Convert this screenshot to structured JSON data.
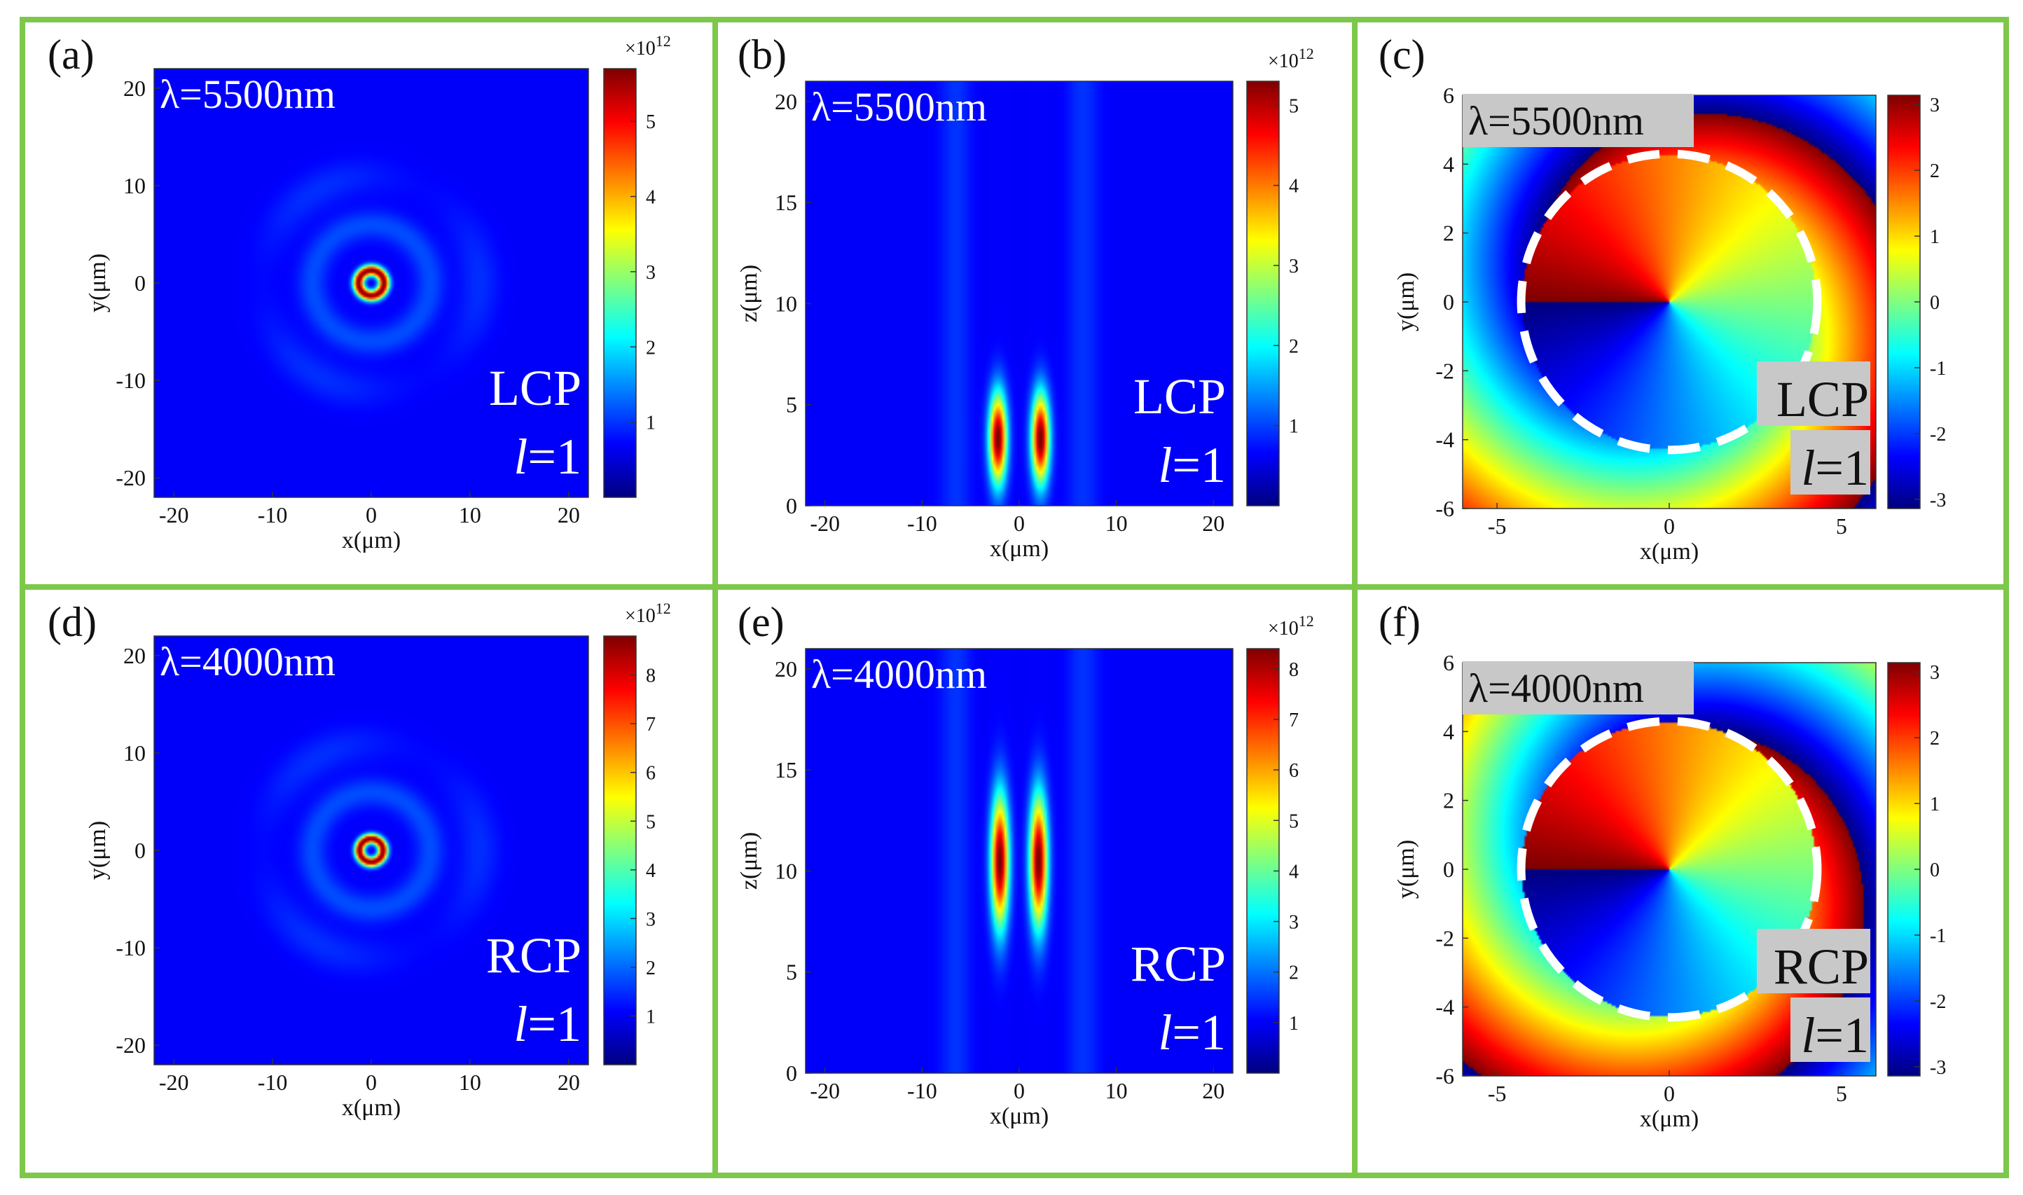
{
  "figure": {
    "frame_color": "#7dc84a",
    "colormap": [
      "#00007f",
      "#0000ff",
      "#007fff",
      "#00ffff",
      "#7fff7f",
      "#ffff00",
      "#ff7f00",
      "#ff0000",
      "#7f0000"
    ],
    "background_field_color": "#0a2fb8"
  },
  "chart_data": [
    {
      "id": "a",
      "type": "heatmap",
      "label": "(a)",
      "annotation": "λ=5500nm",
      "polarization": "LCP",
      "charge_text": "l",
      "charge_value": "=1",
      "xlabel": "x(μm)",
      "ylabel": "y(μm)",
      "xlim": [
        -22,
        22
      ],
      "ylim": [
        -22,
        22
      ],
      "xticks": [
        -20,
        -10,
        0,
        10,
        20
      ],
      "yticks": [
        -20,
        -10,
        0,
        10,
        20
      ],
      "xtick_labels": [
        "-20",
        "-10",
        "0",
        "10",
        "20"
      ],
      "ytick_labels": [
        "-20",
        "-10",
        "0",
        "10",
        "20"
      ],
      "colorbar": {
        "range": [
          0,
          5.7
        ],
        "ticks": [
          1,
          2,
          3,
          4,
          5
        ],
        "tick_labels": [
          "1",
          "2",
          "3",
          "4",
          "5"
        ],
        "multiplier": "×10",
        "exponent": "12"
      },
      "field": "donut_xy",
      "peak_radius": 1.3,
      "peak_width": 0.55,
      "dashed_circle": false
    },
    {
      "id": "b",
      "type": "heatmap",
      "label": "(b)",
      "annotation": "λ=5500nm",
      "polarization": "LCP",
      "charge_text": "l",
      "charge_value": "=1",
      "xlabel": "x(μm)",
      "ylabel": "z(μm)",
      "xlim": [
        -22,
        22
      ],
      "ylim": [
        0,
        21
      ],
      "xticks": [
        -20,
        -10,
        0,
        10,
        20
      ],
      "yticks": [
        0,
        5,
        10,
        15,
        20
      ],
      "xtick_labels": [
        "-20",
        "-10",
        "0",
        "10",
        "20"
      ],
      "ytick_labels": [
        "0",
        "5",
        "10",
        "15",
        "20"
      ],
      "colorbar": {
        "range": [
          0,
          5.3
        ],
        "ticks": [
          1,
          2,
          3,
          4,
          5
        ],
        "tick_labels": [
          "1",
          "2",
          "3",
          "4",
          "5"
        ],
        "multiplier": "×10",
        "exponent": "12"
      },
      "field": "lobes_xz",
      "lobe_x": 2.2,
      "lobe_center_z": 3.3,
      "lobe_length": 2.2,
      "dashed_circle": false
    },
    {
      "id": "c",
      "type": "heatmap",
      "label": "(c)",
      "annotation": "λ=5500nm",
      "polarization": "LCP",
      "charge_text": "l",
      "charge_value": "=1",
      "xlabel": "x(μm)",
      "ylabel": "y(μm)",
      "xlim": [
        -6,
        6
      ],
      "ylim": [
        -6,
        6
      ],
      "xticks": [
        -5,
        0,
        5
      ],
      "yticks": [
        -6,
        -4,
        -2,
        0,
        2,
        4,
        6
      ],
      "xtick_labels": [
        "-5",
        "0",
        "5"
      ],
      "ytick_labels": [
        "-6",
        "-4",
        "-2",
        "0",
        "2",
        "4",
        "6"
      ],
      "colorbar": {
        "range": [
          -3.14,
          3.14
        ],
        "ticks": [
          -3,
          -2,
          -1,
          0,
          1,
          2,
          3
        ],
        "tick_labels": [
          "-3",
          "-2",
          "-1",
          "0",
          "1",
          "2",
          "3"
        ],
        "multiplier": "",
        "exponent": ""
      },
      "field": "phase",
      "dashed_circle": true,
      "circle_radius": 4.3
    },
    {
      "id": "d",
      "type": "heatmap",
      "label": "(d)",
      "annotation": "λ=4000nm",
      "polarization": "RCP",
      "charge_text": "l",
      "charge_value": "=1",
      "xlabel": "x(μm)",
      "ylabel": "y(μm)",
      "xlim": [
        -22,
        22
      ],
      "ylim": [
        -22,
        22
      ],
      "xticks": [
        -20,
        -10,
        0,
        10,
        20
      ],
      "yticks": [
        -20,
        -10,
        0,
        10,
        20
      ],
      "xtick_labels": [
        "-20",
        "-10",
        "0",
        "10",
        "20"
      ],
      "ytick_labels": [
        "-20",
        "-10",
        "0",
        "10",
        "20"
      ],
      "colorbar": {
        "range": [
          0,
          8.8
        ],
        "ticks": [
          1,
          2,
          3,
          4,
          5,
          6,
          7,
          8
        ],
        "tick_labels": [
          "1",
          "2",
          "3",
          "4",
          "5",
          "6",
          "7",
          "8"
        ],
        "multiplier": "×10",
        "exponent": "12"
      },
      "field": "donut_xy",
      "peak_radius": 1.2,
      "peak_width": 0.5,
      "dashed_circle": false
    },
    {
      "id": "e",
      "type": "heatmap",
      "label": "(e)",
      "annotation": "λ=4000nm",
      "polarization": "RCP",
      "charge_text": "l",
      "charge_value": "=1",
      "xlabel": "x(μm)",
      "ylabel": "z(μm)",
      "xlim": [
        -22,
        22
      ],
      "ylim": [
        0,
        21
      ],
      "xticks": [
        -20,
        -10,
        0,
        10,
        20
      ],
      "yticks": [
        0,
        5,
        10,
        15,
        20
      ],
      "xtick_labels": [
        "-20",
        "-10",
        "0",
        "10",
        "20"
      ],
      "ytick_labels": [
        "0",
        "5",
        "10",
        "15",
        "20"
      ],
      "colorbar": {
        "range": [
          0,
          8.4
        ],
        "ticks": [
          1,
          2,
          3,
          4,
          5,
          6,
          7,
          8
        ],
        "tick_labels": [
          "1",
          "2",
          "3",
          "4",
          "5",
          "6",
          "7",
          "8"
        ],
        "multiplier": "×10",
        "exponent": "12"
      },
      "field": "lobes_xz",
      "lobe_x": 2.0,
      "lobe_center_z": 10.5,
      "lobe_length": 3.2,
      "dashed_circle": false
    },
    {
      "id": "f",
      "type": "heatmap",
      "label": "(f)",
      "annotation": "λ=4000nm",
      "polarization": "RCP",
      "charge_text": "l",
      "charge_value": "=1",
      "xlabel": "x(μm)",
      "ylabel": "y(μm)",
      "xlim": [
        -6,
        6
      ],
      "ylim": [
        -6,
        6
      ],
      "xticks": [
        -5,
        0,
        5
      ],
      "yticks": [
        -6,
        -4,
        -2,
        0,
        2,
        4,
        6
      ],
      "xtick_labels": [
        "-5",
        "0",
        "5"
      ],
      "ytick_labels": [
        "-6",
        "-4",
        "-2",
        "0",
        "2",
        "4",
        "6"
      ],
      "colorbar": {
        "range": [
          -3.14,
          3.14
        ],
        "ticks": [
          -3,
          -2,
          -1,
          0,
          1,
          2,
          3
        ],
        "tick_labels": [
          "-3",
          "-2",
          "-1",
          "0",
          "1",
          "2",
          "3"
        ],
        "multiplier": "",
        "exponent": ""
      },
      "field": "phase",
      "dashed_circle": true,
      "circle_radius": 4.3
    }
  ]
}
